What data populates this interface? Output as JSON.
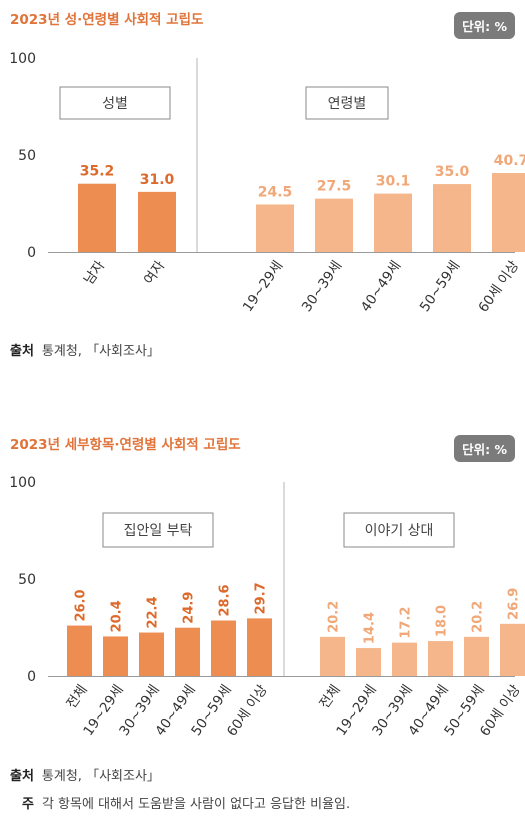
{
  "charts": [
    {
      "title": "2023년 성·연령별 사회적 고립도",
      "unit": "단위: %",
      "source_label": "출처",
      "source": "통계청, 「사회조사」"
    },
    {
      "title": "2023년 세부항목·연령별 사회적 고립도",
      "unit": "단위: %",
      "source_label": "출처",
      "source": "통계청, 「사회조사」",
      "note_label": "주",
      "note": "각 항목에 대해서 도움받을 사람이 없다고 응답한 비율임."
    }
  ],
  "chart_data": [
    {
      "type": "bar",
      "title": "2023년 성·연령별 사회적 고립도",
      "ylim": [
        0,
        100
      ],
      "yticks": [
        0,
        50,
        100
      ],
      "grid": false,
      "colors": {
        "dark": "#ee8d52",
        "light": "#f4b68a",
        "label_dark": "#dc6a2c",
        "label_light": "#f0a878"
      },
      "groups": [
        {
          "label": "성별",
          "shade": "dark",
          "categories": [
            "남자",
            "여자"
          ],
          "values": [
            35.2,
            31.0
          ]
        },
        {
          "label": "연령별",
          "shade": "light",
          "categories": [
            "19~29세",
            "30~39세",
            "40~49세",
            "50~59세",
            "60세 이상"
          ],
          "values": [
            24.5,
            27.5,
            30.1,
            35.0,
            40.7
          ]
        }
      ]
    },
    {
      "type": "bar",
      "title": "2023년 세부항목·연령별 사회적 고립도",
      "ylim": [
        0,
        100
      ],
      "yticks": [
        0,
        50,
        100
      ],
      "grid": false,
      "colors": {
        "dark": "#ee8d52",
        "light": "#f4b68a",
        "label_dark": "#dc6a2c",
        "label_light": "#f0a878"
      },
      "groups": [
        {
          "label": "집안일 부탁",
          "shade": "dark",
          "categories": [
            "전체",
            "19~29세",
            "30~39세",
            "40~49세",
            "50~59세",
            "60세 이상"
          ],
          "values": [
            26.0,
            20.4,
            22.4,
            24.9,
            28.6,
            29.7
          ]
        },
        {
          "label": "이야기 상대",
          "shade": "light",
          "categories": [
            "전체",
            "19~29세",
            "30~39세",
            "40~49세",
            "50~59세",
            "60세 이상"
          ],
          "values": [
            20.2,
            14.4,
            17.2,
            18.0,
            20.2,
            26.9
          ]
        }
      ]
    }
  ]
}
